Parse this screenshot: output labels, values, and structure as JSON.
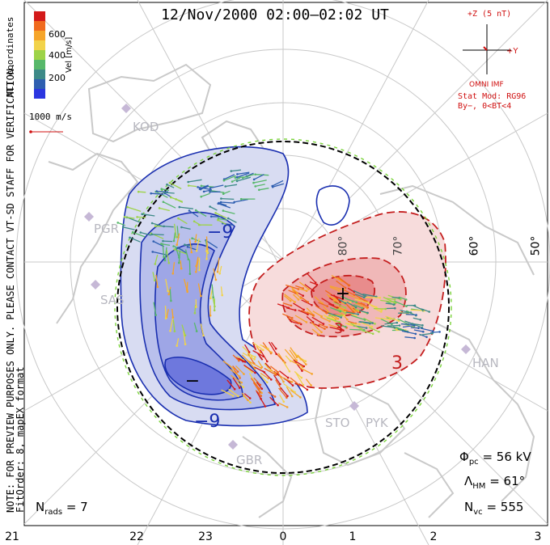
{
  "title": "12/Nov/2000 02:00–02:02 UT",
  "colorbar": {
    "tick_labels": [
      "600",
      "400",
      "200"
    ],
    "label": "Vel [m/s]",
    "colors": [
      "#d31a1a",
      "#f06a1e",
      "#f6a52a",
      "#f2d34a",
      "#9dd348",
      "#57b86a",
      "#3d8a88",
      "#2f5fb0",
      "#2b36e0"
    ]
  },
  "mlt_label": "MLT coordinates",
  "vector_scale": "1000 m/s",
  "imf": {
    "scale": "+Z (5 nT)",
    "y_axis": "+Y",
    "source": "OMNI IMF",
    "stat_model": "Stat Mod: RG96",
    "condition": "By−, 0<BT<4"
  },
  "note_line1": "NOTE: FOR PREVIEW PURPOSES ONLY. PLEASE CONTACT VT-SD STAFF FOR VERIFICATION.",
  "note_line2": "FitOrder: 8, mapEX format",
  "stats": {
    "phi_symbol": "Φ",
    "phi_sub": "pc",
    "phi_value": "= 56 kV",
    "lambda_symbol": "Λ",
    "lambda_sub": "HM",
    "lambda_value": "= 61°",
    "nvc_symbol": "N",
    "nvc_sub": "vc",
    "nvc_value": "= 555",
    "nrads_symbol": "N",
    "nrads_sub": "rads",
    "nrads_value": "= 7"
  },
  "x_ticks": [
    "21",
    "22",
    "23",
    "0",
    "1",
    "2",
    "3"
  ],
  "latitude_labels": [
    "60°",
    "50°",
    "70°",
    "80°"
  ],
  "radar_sites": [
    "KOD",
    "PGR",
    "SAS",
    "GBR",
    "STO",
    "PYK",
    "HAN"
  ],
  "contour_labels": [
    "−9",
    "−9",
    "3",
    "3"
  ],
  "extremum_markers": [
    "+",
    "−"
  ],
  "contour_colors": {
    "negative": "#1a2fb0",
    "positive": "#c41e1e",
    "boundary": "#000000"
  }
}
